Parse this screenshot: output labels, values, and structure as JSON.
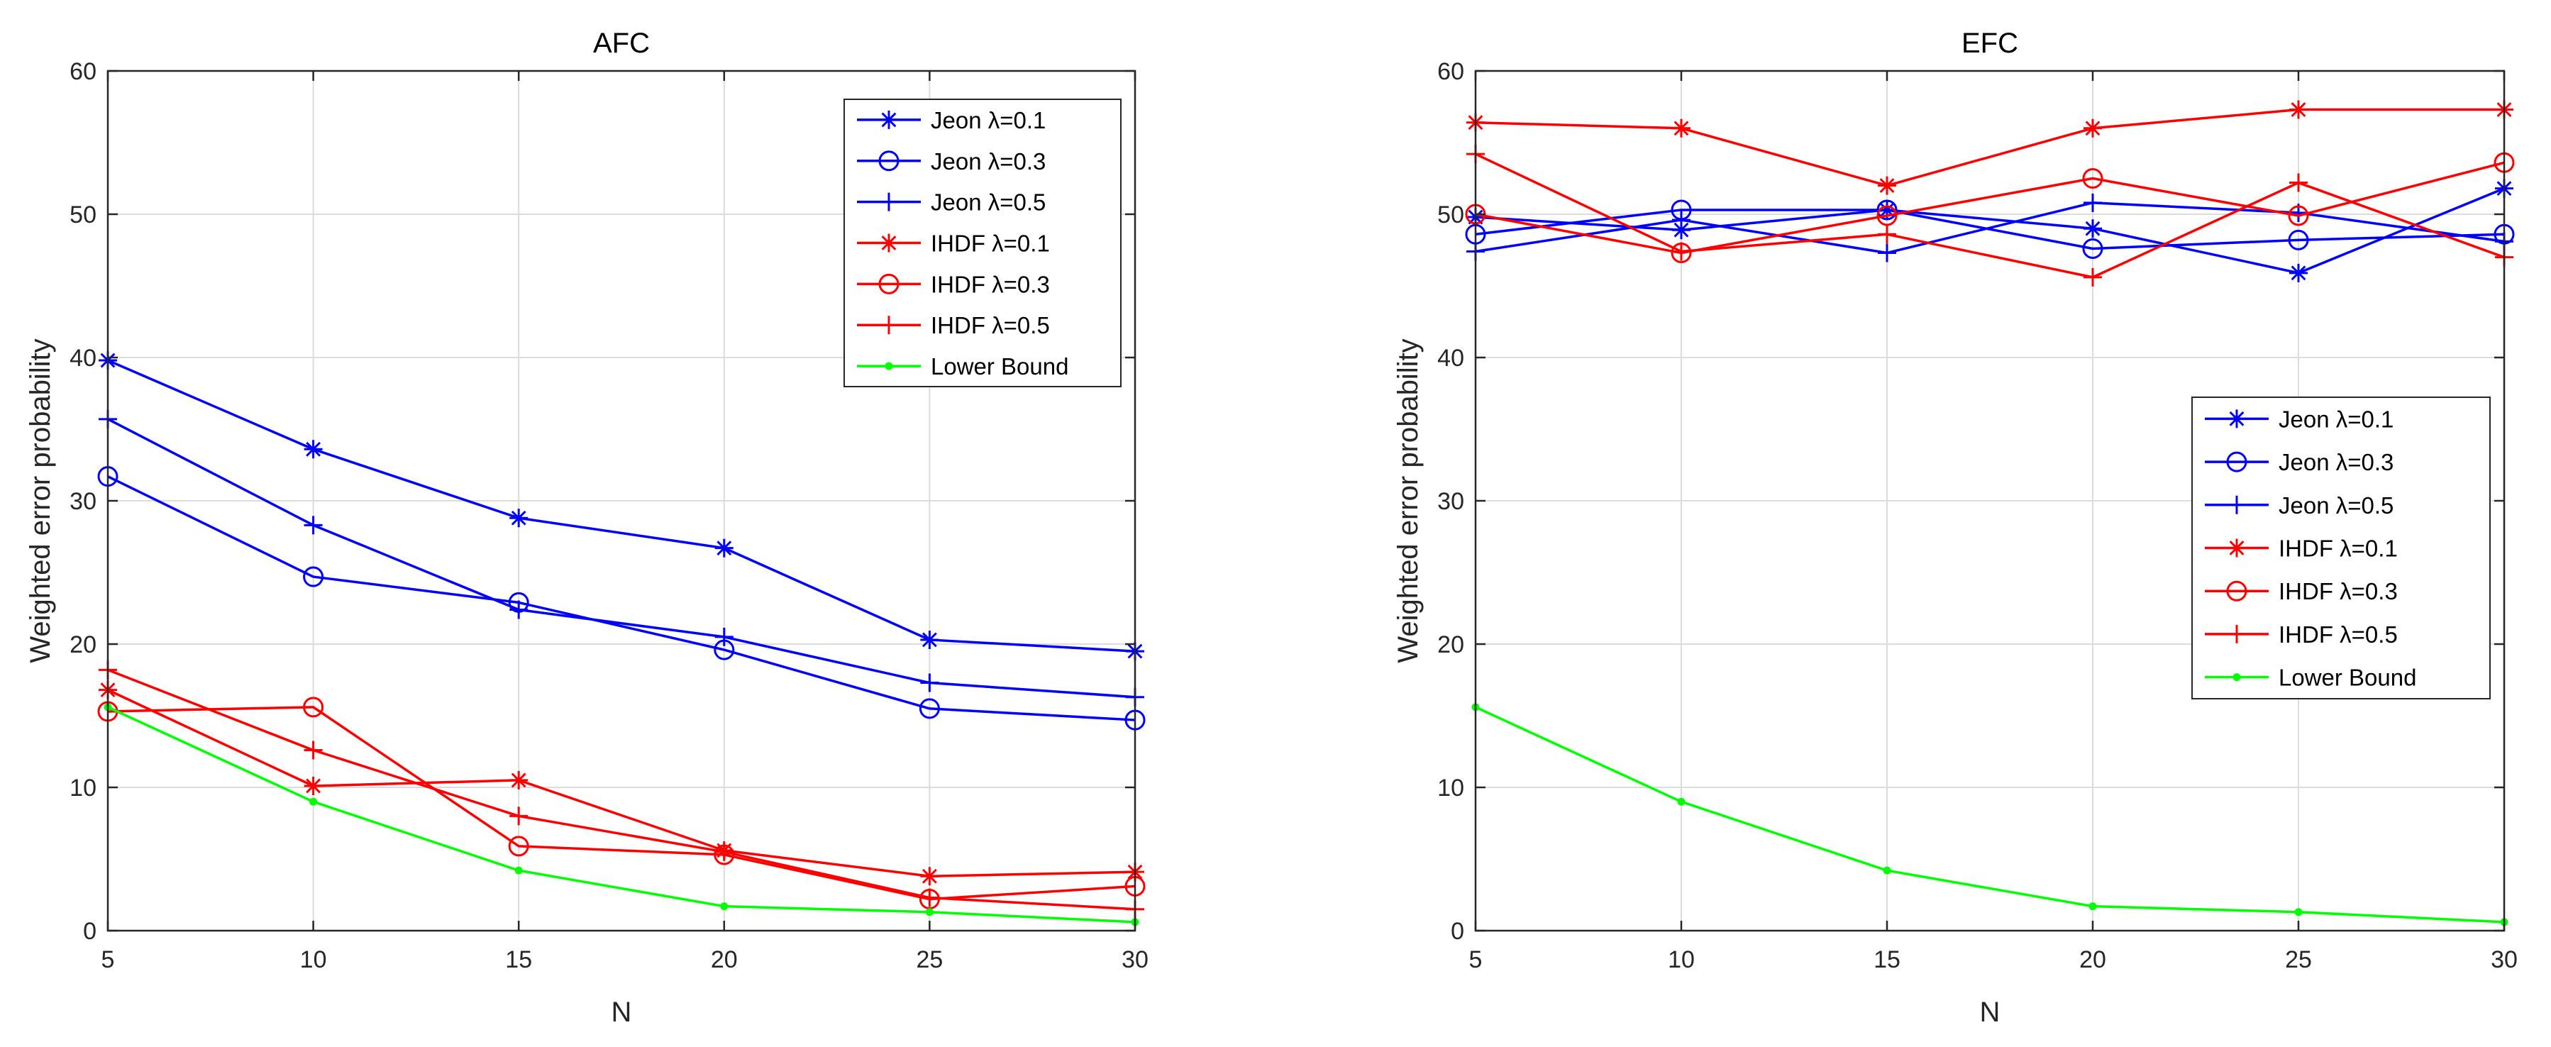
{
  "chart_data": [
    {
      "type": "line",
      "title": "AFC",
      "xlabel": "N",
      "ylabel": "Weighted error probability",
      "xlim": [
        5,
        30
      ],
      "ylim": [
        0,
        60
      ],
      "xticks": [
        5,
        10,
        15,
        20,
        25,
        30
      ],
      "yticks": [
        0,
        10,
        20,
        30,
        40,
        50,
        60
      ],
      "grid": true,
      "legend_position": "top-right",
      "x": [
        5,
        10,
        15,
        20,
        25,
        30
      ],
      "series": [
        {
          "name": "Jeon λ=0.1",
          "color": "#0000ff",
          "marker": "asterisk",
          "values": [
            39.8,
            33.6,
            28.8,
            26.7,
            20.3,
            19.5
          ]
        },
        {
          "name": "Jeon λ=0.3",
          "color": "#0000ff",
          "marker": "circle",
          "values": [
            31.7,
            24.7,
            22.9,
            19.6,
            15.5,
            14.7
          ]
        },
        {
          "name": "Jeon λ=0.5",
          "color": "#0000ff",
          "marker": "plus",
          "values": [
            35.7,
            28.3,
            22.4,
            20.5,
            17.3,
            16.3
          ]
        },
        {
          "name": "IHDF λ=0.1",
          "color": "#ff0000",
          "marker": "asterisk",
          "values": [
            16.8,
            10.1,
            10.5,
            5.6,
            3.8,
            4.1
          ]
        },
        {
          "name": "IHDF λ=0.3",
          "color": "#ff0000",
          "marker": "circle",
          "values": [
            15.3,
            15.6,
            5.9,
            5.3,
            2.2,
            3.1
          ]
        },
        {
          "name": "IHDF λ=0.5",
          "color": "#ff0000",
          "marker": "plus",
          "values": [
            18.2,
            12.6,
            8.0,
            5.5,
            2.3,
            1.5
          ]
        },
        {
          "name": "Lower Bound",
          "color": "#00ff00",
          "marker": "dot",
          "values": [
            15.6,
            9.0,
            4.2,
            1.7,
            1.3,
            0.6
          ]
        }
      ]
    },
    {
      "type": "line",
      "title": "EFC",
      "xlabel": "N",
      "ylabel": "Weighted error probability",
      "xlim": [
        5,
        30
      ],
      "ylim": [
        0,
        60
      ],
      "xticks": [
        5,
        10,
        15,
        20,
        25,
        30
      ],
      "yticks": [
        0,
        10,
        20,
        30,
        40,
        50,
        60
      ],
      "grid": true,
      "legend_position": "center-right",
      "x": [
        5,
        10,
        15,
        20,
        25,
        30
      ],
      "series": [
        {
          "name": "Jeon λ=0.1",
          "color": "#0000ff",
          "marker": "asterisk",
          "values": [
            49.8,
            48.9,
            50.3,
            49.0,
            45.9,
            51.8
          ]
        },
        {
          "name": "Jeon λ=0.3",
          "color": "#0000ff",
          "marker": "circle",
          "values": [
            48.6,
            50.3,
            50.3,
            47.6,
            48.2,
            48.6
          ]
        },
        {
          "name": "Jeon λ=0.5",
          "color": "#0000ff",
          "marker": "plus",
          "values": [
            47.4,
            49.6,
            47.3,
            50.8,
            50.1,
            48.1
          ]
        },
        {
          "name": "IHDF λ=0.1",
          "color": "#ff0000",
          "marker": "asterisk",
          "values": [
            56.4,
            56.0,
            52.0,
            56.0,
            57.3,
            57.3
          ]
        },
        {
          "name": "IHDF λ=0.3",
          "color": "#ff0000",
          "marker": "circle",
          "values": [
            50.0,
            47.3,
            49.9,
            52.5,
            49.9,
            53.6
          ]
        },
        {
          "name": "IHDF λ=0.5",
          "color": "#ff0000",
          "marker": "plus",
          "values": [
            54.2,
            47.4,
            48.6,
            45.6,
            52.2,
            47.0
          ]
        },
        {
          "name": "Lower Bound",
          "color": "#00ff00",
          "marker": "dot",
          "values": [
            15.6,
            9.0,
            4.2,
            1.7,
            1.3,
            0.6
          ]
        }
      ]
    }
  ]
}
